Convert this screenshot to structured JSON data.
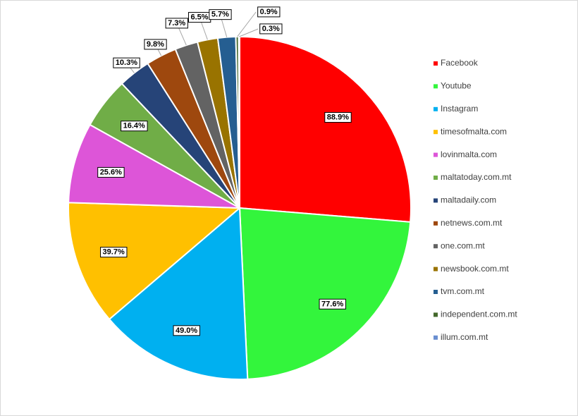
{
  "chart_data": {
    "type": "pie",
    "categories": [
      "Facebook",
      "Youtube",
      "Instagram",
      "timesofmalta.com",
      "lovinmalta.com",
      "maltatoday.com.mt",
      "maltadaily.com",
      "netnews.com.mt",
      "one.com.mt",
      "newsbook.com.mt",
      "tvm.com.mt",
      "independent.com.mt",
      "illum.com.mt"
    ],
    "values": [
      88.9,
      77.6,
      49.0,
      39.7,
      25.6,
      16.4,
      10.3,
      9.8,
      7.3,
      6.5,
      5.7,
      0.9,
      0.3
    ],
    "value_labels": [
      "88.9%",
      "77.6%",
      "49.0%",
      "39.7%",
      "25.6%",
      "16.4%",
      "10.3%",
      "9.8%",
      "7.3%",
      "6.5%",
      "5.7%",
      "0.9%",
      "0.3%"
    ],
    "colors": [
      "#ff0000",
      "#33f53c",
      "#00b0f0",
      "#ffc000",
      "#dd55d8",
      "#70ad47",
      "#264478",
      "#9e480e",
      "#636363",
      "#997300",
      "#255e91",
      "#43682b",
      "#698ed0"
    ],
    "legend": "right"
  }
}
